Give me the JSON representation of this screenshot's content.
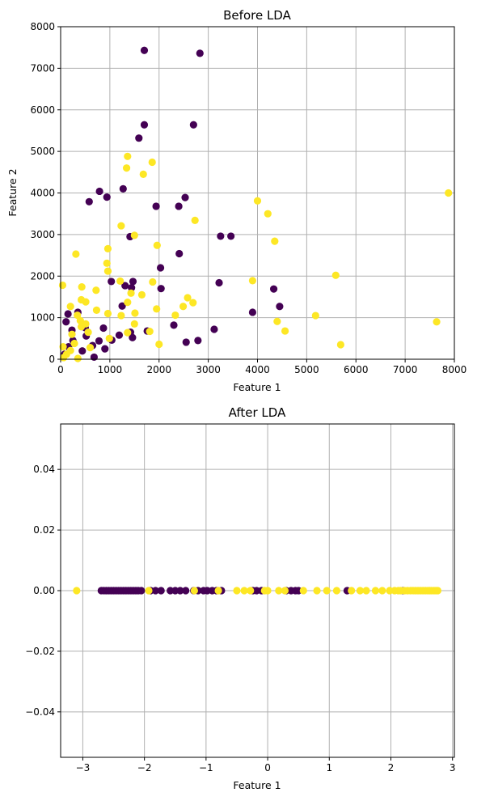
{
  "colors": {
    "class0": "#440154",
    "class1": "#fde725",
    "grid": "#b0b0b0"
  },
  "chart_data": [
    {
      "type": "scatter",
      "title": "Before LDA",
      "xlabel": "Feature 1",
      "ylabel": "Feature 2",
      "xlim": [
        0,
        8000
      ],
      "ylim": [
        0,
        8000
      ],
      "xticks": [
        0,
        1000,
        2000,
        3000,
        4000,
        5000,
        6000,
        7000,
        8000
      ],
      "yticks": [
        0,
        1000,
        2000,
        3000,
        4000,
        5000,
        6000,
        7000,
        8000
      ],
      "xtick_labels": [
        "0",
        "1000",
        "2000",
        "3000",
        "4000",
        "5000",
        "6000",
        "7000",
        "8000"
      ],
      "ytick_labels": [
        "0",
        "1000",
        "2000",
        "3000",
        "4000",
        "5000",
        "6000",
        "7000",
        "8000"
      ],
      "grid": true,
      "series": [
        {
          "color": "#440154",
          "points": [
            [
              1700,
              7430
            ],
            [
              2830,
              7360
            ],
            [
              1700,
              5640
            ],
            [
              2700,
              5640
            ],
            [
              1590,
              5320
            ],
            [
              2530,
              3890
            ],
            [
              1270,
              4100
            ],
            [
              790,
              4040
            ],
            [
              940,
              3900
            ],
            [
              580,
              3790
            ],
            [
              1940,
              3680
            ],
            [
              2400,
              3680
            ],
            [
              1410,
              2950
            ],
            [
              3250,
              2960
            ],
            [
              3460,
              2960
            ],
            [
              2410,
              2540
            ],
            [
              2030,
              2200
            ],
            [
              1310,
              1770
            ],
            [
              1030,
              1870
            ],
            [
              1470,
              1870
            ],
            [
              1440,
              1720
            ],
            [
              2040,
              1700
            ],
            [
              3220,
              1840
            ],
            [
              4330,
              1690
            ],
            [
              4450,
              1270
            ],
            [
              3900,
              1130
            ],
            [
              3120,
              720
            ],
            [
              2300,
              820
            ],
            [
              1760,
              680
            ],
            [
              1420,
              650
            ],
            [
              2790,
              450
            ],
            [
              2550,
              410
            ],
            [
              1460,
              520
            ],
            [
              1190,
              580
            ],
            [
              1040,
              460
            ],
            [
              870,
              750
            ],
            [
              780,
              440
            ],
            [
              150,
              1090
            ],
            [
              350,
              1130
            ],
            [
              110,
              900
            ],
            [
              520,
              560
            ],
            [
              650,
              330
            ],
            [
              440,
              200
            ],
            [
              160,
              300
            ],
            [
              80,
              120
            ],
            [
              680,
              50
            ],
            [
              230,
              700
            ],
            [
              900,
              250
            ],
            [
              500,
              760
            ],
            [
              250,
              450
            ],
            [
              1250,
              1280
            ]
          ]
        },
        {
          "color": "#fde725",
          "points": [
            [
              7880,
              4000
            ],
            [
              1860,
              4740
            ],
            [
              1360,
              4880
            ],
            [
              1340,
              4600
            ],
            [
              1680,
              4450
            ],
            [
              4000,
              3810
            ],
            [
              4210,
              3500
            ],
            [
              2730,
              3340
            ],
            [
              1230,
              3210
            ],
            [
              1500,
              2980
            ],
            [
              4350,
              2840
            ],
            [
              1960,
              2740
            ],
            [
              960,
              2660
            ],
            [
              310,
              2530
            ],
            [
              940,
              2310
            ],
            [
              960,
              2120
            ],
            [
              5590,
              2020
            ],
            [
              1210,
              1880
            ],
            [
              3900,
              1890
            ],
            [
              1870,
              1860
            ],
            [
              40,
              1780
            ],
            [
              430,
              1740
            ],
            [
              720,
              1660
            ],
            [
              1430,
              1590
            ],
            [
              1650,
              1550
            ],
            [
              2580,
              1480
            ],
            [
              420,
              1430
            ],
            [
              510,
              1380
            ],
            [
              1360,
              1370
            ],
            [
              2690,
              1360
            ],
            [
              2490,
              1270
            ],
            [
              200,
              1270
            ],
            [
              1950,
              1210
            ],
            [
              730,
              1180
            ],
            [
              1510,
              1110
            ],
            [
              960,
              1100
            ],
            [
              340,
              1060
            ],
            [
              2330,
              1060
            ],
            [
              5180,
              1050
            ],
            [
              1230,
              1050
            ],
            [
              4400,
              910
            ],
            [
              7640,
              900
            ],
            [
              1500,
              850
            ],
            [
              510,
              850
            ],
            [
              420,
              780
            ],
            [
              1810,
              670
            ],
            [
              4560,
              680
            ],
            [
              1360,
              640
            ],
            [
              230,
              600
            ],
            [
              990,
              500
            ],
            [
              2000,
              360
            ],
            [
              5690,
              350
            ],
            [
              120,
              120
            ],
            [
              60,
              40
            ],
            [
              280,
              380
            ],
            [
              600,
              280
            ],
            [
              50,
              300
            ],
            [
              200,
              210
            ],
            [
              350,
              20
            ],
            [
              560,
              650
            ],
            [
              400,
              930
            ]
          ]
        }
      ]
    },
    {
      "type": "scatter",
      "title": "After LDA",
      "xlabel": "Feature 1",
      "ylabel": "",
      "xlim": [
        -3.36,
        3.03
      ],
      "ylim": [
        -0.055,
        0.055
      ],
      "xticks": [
        -3,
        -2,
        -1,
        0,
        1,
        2,
        3
      ],
      "yticks": [
        -0.04,
        -0.02,
        0.0,
        0.02,
        0.04
      ],
      "xtick_labels": [
        "−3",
        "−2",
        "−1",
        "0",
        "1",
        "2",
        "3"
      ],
      "ytick_labels": [
        "−0.04",
        "−0.02",
        "0.00",
        "0.02",
        "0.04"
      ],
      "grid": true,
      "series": [
        {
          "color": "#440154",
          "points": [
            [
              -2.7,
              0
            ],
            [
              -2.66,
              0
            ],
            [
              -2.62,
              0
            ],
            [
              -2.58,
              0
            ],
            [
              -2.54,
              0
            ],
            [
              -2.5,
              0
            ],
            [
              -2.46,
              0
            ],
            [
              -2.42,
              0
            ],
            [
              -2.38,
              0
            ],
            [
              -2.34,
              0
            ],
            [
              -2.3,
              0
            ],
            [
              -2.26,
              0
            ],
            [
              -2.22,
              0
            ],
            [
              -2.18,
              0
            ],
            [
              -2.14,
              0
            ],
            [
              -2.1,
              0
            ],
            [
              -2.05,
              0
            ],
            [
              -1.9,
              0
            ],
            [
              -1.82,
              0
            ],
            [
              -1.73,
              0
            ],
            [
              -1.58,
              0
            ],
            [
              -1.5,
              0
            ],
            [
              -1.42,
              0
            ],
            [
              -1.33,
              0
            ],
            [
              -1.2,
              0
            ],
            [
              -1.13,
              0
            ],
            [
              -1.04,
              0
            ],
            [
              -0.98,
              0
            ],
            [
              -0.9,
              0
            ],
            [
              -0.83,
              0
            ],
            [
              -0.75,
              0
            ],
            [
              -0.24,
              0
            ],
            [
              -0.18,
              0
            ],
            [
              -0.1,
              0
            ],
            [
              0.3,
              0
            ],
            [
              0.38,
              0
            ],
            [
              0.45,
              0
            ],
            [
              0.5,
              0
            ],
            [
              1.29,
              0
            ],
            [
              2.2,
              0
            ]
          ]
        },
        {
          "color": "#fde725",
          "points": [
            [
              -3.1,
              0
            ],
            [
              -1.93,
              0
            ],
            [
              -1.19,
              0
            ],
            [
              -0.8,
              0
            ],
            [
              -0.5,
              0
            ],
            [
              -0.38,
              0
            ],
            [
              -0.28,
              0
            ],
            [
              -0.05,
              0
            ],
            [
              0.0,
              0
            ],
            [
              0.18,
              0
            ],
            [
              0.28,
              0
            ],
            [
              0.58,
              0
            ],
            [
              0.8,
              0
            ],
            [
              0.96,
              0
            ],
            [
              1.12,
              0
            ],
            [
              1.36,
              0
            ],
            [
              1.5,
              0
            ],
            [
              1.6,
              0
            ],
            [
              1.75,
              0
            ],
            [
              1.86,
              0
            ],
            [
              1.98,
              0
            ],
            [
              2.06,
              0
            ],
            [
              2.12,
              0
            ],
            [
              2.16,
              0
            ],
            [
              2.22,
              0
            ],
            [
              2.27,
              0
            ],
            [
              2.32,
              0
            ],
            [
              2.36,
              0
            ],
            [
              2.4,
              0
            ],
            [
              2.44,
              0
            ],
            [
              2.48,
              0
            ],
            [
              2.52,
              0
            ],
            [
              2.56,
              0
            ],
            [
              2.6,
              0
            ],
            [
              2.63,
              0
            ],
            [
              2.66,
              0
            ],
            [
              2.7,
              0
            ],
            [
              2.73,
              0
            ],
            [
              2.76,
              0
            ]
          ]
        }
      ]
    }
  ]
}
